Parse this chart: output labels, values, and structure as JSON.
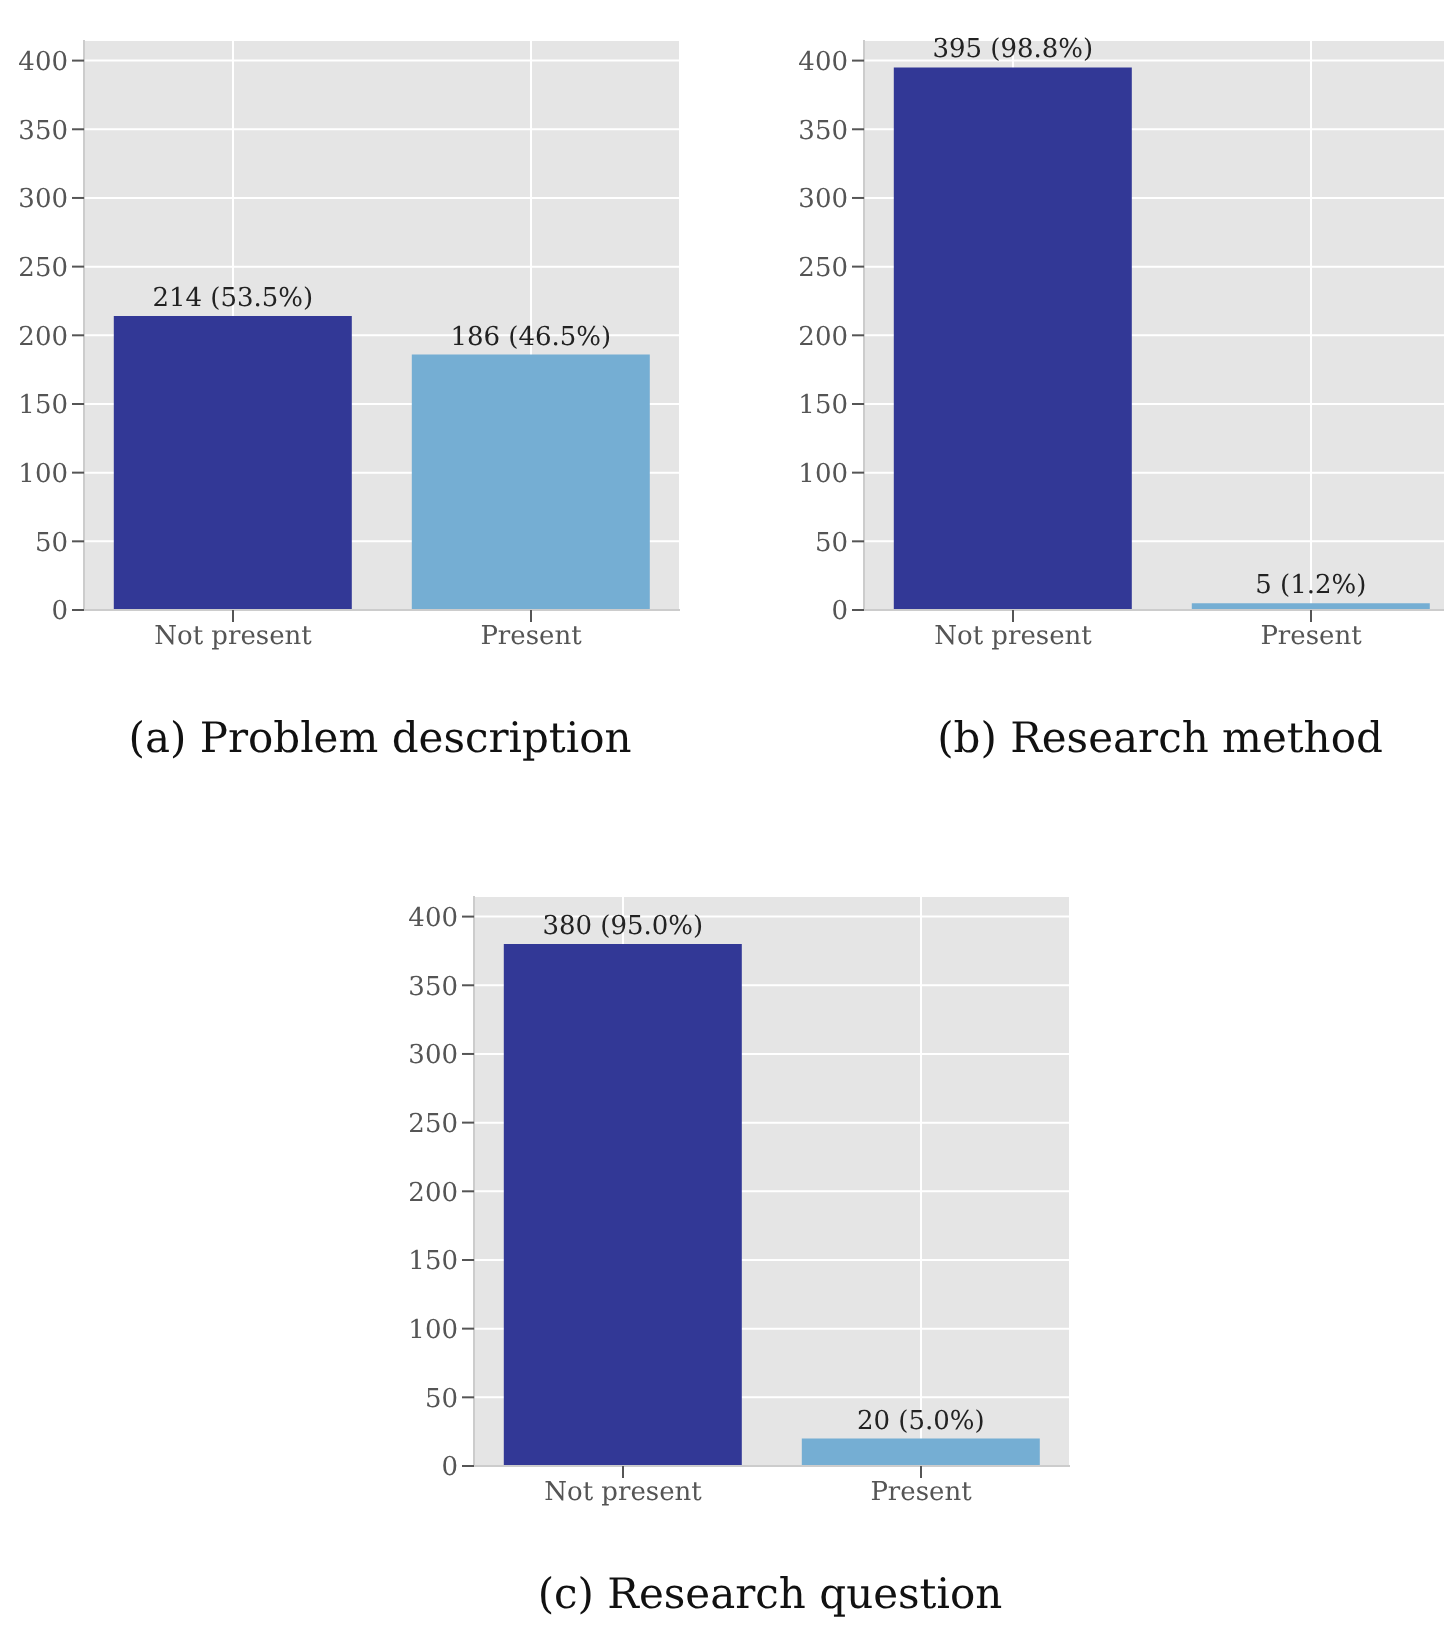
{
  "chart_data": [
    {
      "type": "bar",
      "title": "(a) Problem description",
      "categories": [
        "Not present",
        "Present"
      ],
      "values": [
        214,
        186
      ],
      "colors": [
        "#323896",
        "#75aed3"
      ],
      "value_labels": [
        "214 (53.5%)",
        "186 (46.5%)"
      ],
      "ylim": [
        0,
        415
      ],
      "yticks": [
        0,
        50,
        100,
        150,
        200,
        250,
        300,
        350,
        400
      ],
      "grid": true
    },
    {
      "type": "bar",
      "title": "(b) Research method",
      "categories": [
        "Not present",
        "Present"
      ],
      "values": [
        395,
        5
      ],
      "colors": [
        "#323896",
        "#75aed3"
      ],
      "value_labels": [
        "395 (98.8%)",
        "5 (1.2%)"
      ],
      "ylim": [
        0,
        415
      ],
      "yticks": [
        0,
        50,
        100,
        150,
        200,
        250,
        300,
        350,
        400
      ],
      "grid": true
    },
    {
      "type": "bar",
      "title": "(c) Research question",
      "categories": [
        "Not present",
        "Present"
      ],
      "values": [
        380,
        20
      ],
      "colors": [
        "#323896",
        "#75aed3"
      ],
      "value_labels": [
        "380 (95.0%)",
        "20 (5.0%)"
      ],
      "ylim": [
        0,
        415
      ],
      "yticks": [
        0,
        50,
        100,
        150,
        200,
        250,
        300,
        350,
        400
      ],
      "grid": true
    }
  ]
}
